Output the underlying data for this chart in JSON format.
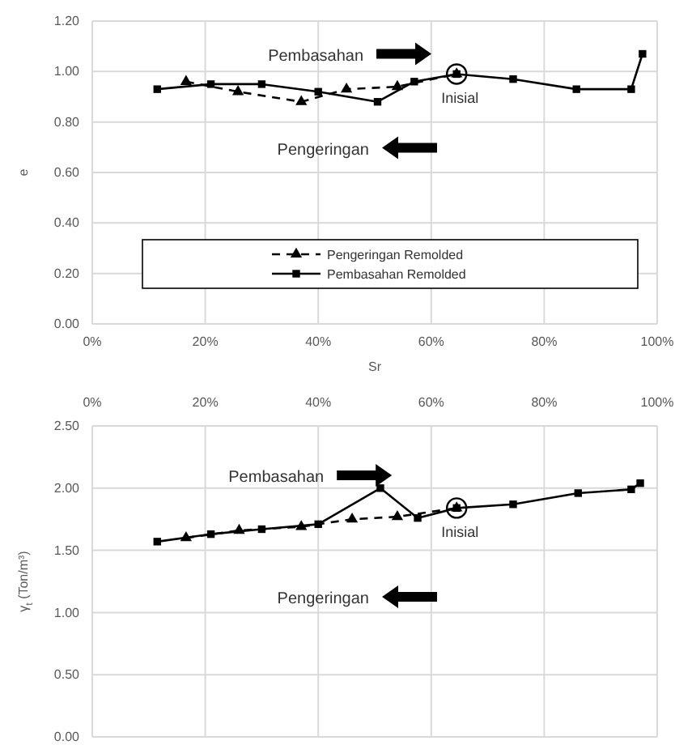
{
  "chart_data": [
    {
      "type": "line",
      "xlabel": "Sr",
      "ylabel": "e",
      "xlim": [
        0,
        100
      ],
      "xticks": [
        {
          "value": 0,
          "label": "0%"
        },
        {
          "value": 20,
          "label": "20%"
        },
        {
          "value": 40,
          "label": "40%"
        },
        {
          "value": 60,
          "label": "60%"
        },
        {
          "value": 80,
          "label": "80%"
        },
        {
          "value": 100,
          "label": "100%"
        }
      ],
      "ylim": [
        0,
        1.2
      ],
      "yticks": [
        {
          "value": 0,
          "label": "0.00"
        },
        {
          "value": 0.2,
          "label": "0.20"
        },
        {
          "value": 0.4,
          "label": "0.40"
        },
        {
          "value": 0.6,
          "label": "0.60"
        },
        {
          "value": 0.8,
          "label": "0.80"
        },
        {
          "value": 1,
          "label": "1.00"
        },
        {
          "value": 1.2,
          "label": "1.20"
        }
      ],
      "grid": true,
      "legend": "bottom",
      "series": [
        {
          "name": "Pengeringan Remolded",
          "color": "#000000",
          "line_style": "dashed",
          "marker": "triangle",
          "x": [
            16.6,
            25.8,
            37,
            45,
            54,
            64.5
          ],
          "values": [
            0.96,
            0.92,
            0.88,
            0.93,
            0.94,
            0.99
          ]
        },
        {
          "name": "Pembasahan Remolded",
          "color": "#000000",
          "line_style": "solid",
          "marker": "square",
          "x": [
            11.5,
            21,
            30,
            40,
            50.5,
            57,
            64.5,
            74.5,
            85.7,
            95.4,
            97.4
          ],
          "values": [
            0.93,
            0.95,
            0.95,
            0.92,
            0.88,
            0.96,
            0.99,
            0.97,
            0.93,
            0.93,
            1.07
          ]
        }
      ],
      "annotations": [
        "Pembasahan",
        "Pengeringan",
        {
          "text": "Inisial",
          "x": 64.5,
          "y": 0.99
        }
      ]
    },
    {
      "type": "line",
      "ylabel": "γ$_{t}$ (Ton/m³)",
      "xlim": [
        0,
        100
      ],
      "xticks": [
        {
          "value": 0,
          "label": "0%"
        },
        {
          "value": 20,
          "label": "20%"
        },
        {
          "value": 40,
          "label": "40%"
        },
        {
          "value": 60,
          "label": "60%"
        },
        {
          "value": 80,
          "label": "80%"
        },
        {
          "value": 100,
          "label": "100%"
        }
      ],
      "ylim": [
        0,
        2.5
      ],
      "yticks": [
        {
          "value": 0,
          "label": "0.00"
        },
        {
          "value": 0.5,
          "label": "0.50"
        },
        {
          "value": 1,
          "label": "1.00"
        },
        {
          "value": 1.5,
          "label": "1.50"
        },
        {
          "value": 2,
          "label": "2.00"
        },
        {
          "value": 2.5,
          "label": "2.50"
        }
      ],
      "grid": true,
      "series": [
        {
          "color": "#000000",
          "line_style": "dashed",
          "marker": "triangle",
          "x": [
            16.6,
            26,
            37,
            46,
            54,
            64.5
          ],
          "values": [
            1.6,
            1.66,
            1.69,
            1.75,
            1.77,
            1.84
          ]
        },
        {
          "color": "#000000",
          "line_style": "solid",
          "marker": "square",
          "x": [
            11.5,
            21,
            30,
            40,
            51,
            57.6,
            64.5,
            74.5,
            86,
            95.4,
            97
          ],
          "values": [
            1.57,
            1.63,
            1.67,
            1.71,
            2,
            1.76,
            1.84,
            1.87,
            1.96,
            1.99,
            2.04
          ]
        }
      ],
      "annotations": [
        "Pembasahan",
        "Pengeringan",
        {
          "text": "Inisial",
          "x": 64.5,
          "y": 1.84
        }
      ]
    }
  ]
}
